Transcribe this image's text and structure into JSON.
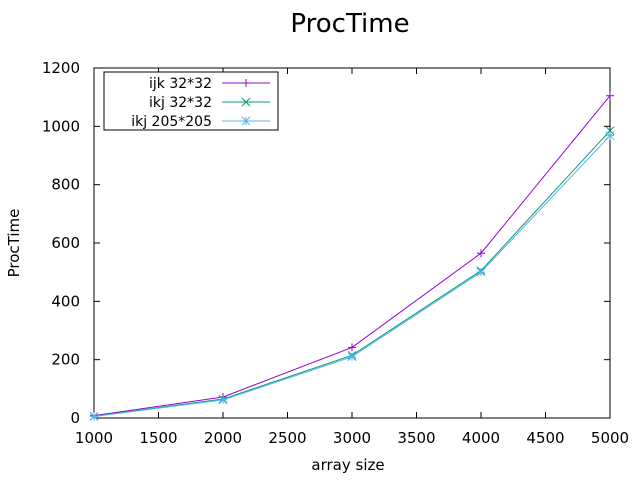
{
  "chart_data": {
    "type": "line",
    "title": "ProcTime",
    "xlabel": "array size",
    "ylabel": "ProcTime",
    "x": [
      1000,
      2000,
      3000,
      4000,
      5000
    ],
    "xlim": [
      1000,
      5000
    ],
    "ylim": [
      0,
      1200
    ],
    "xticks": [
      1000,
      1500,
      2000,
      2500,
      3000,
      3500,
      4000,
      4500,
      5000
    ],
    "yticks": [
      0,
      200,
      400,
      600,
      800,
      1000,
      1200
    ],
    "grid": false,
    "legend_position": "top-left",
    "series": [
      {
        "name": "ijk 32*32",
        "color": "#9400d3",
        "marker": "plus",
        "values": [
          8,
          72,
          242,
          565,
          1105
        ]
      },
      {
        "name": "ikj 32*32",
        "color": "#009e73",
        "marker": "cross",
        "values": [
          6,
          65,
          215,
          505,
          985
        ]
      },
      {
        "name": "ikj 205*205",
        "color": "#56b4e9",
        "marker": "star",
        "values": [
          5,
          62,
          210,
          500,
          968
        ]
      }
    ]
  }
}
